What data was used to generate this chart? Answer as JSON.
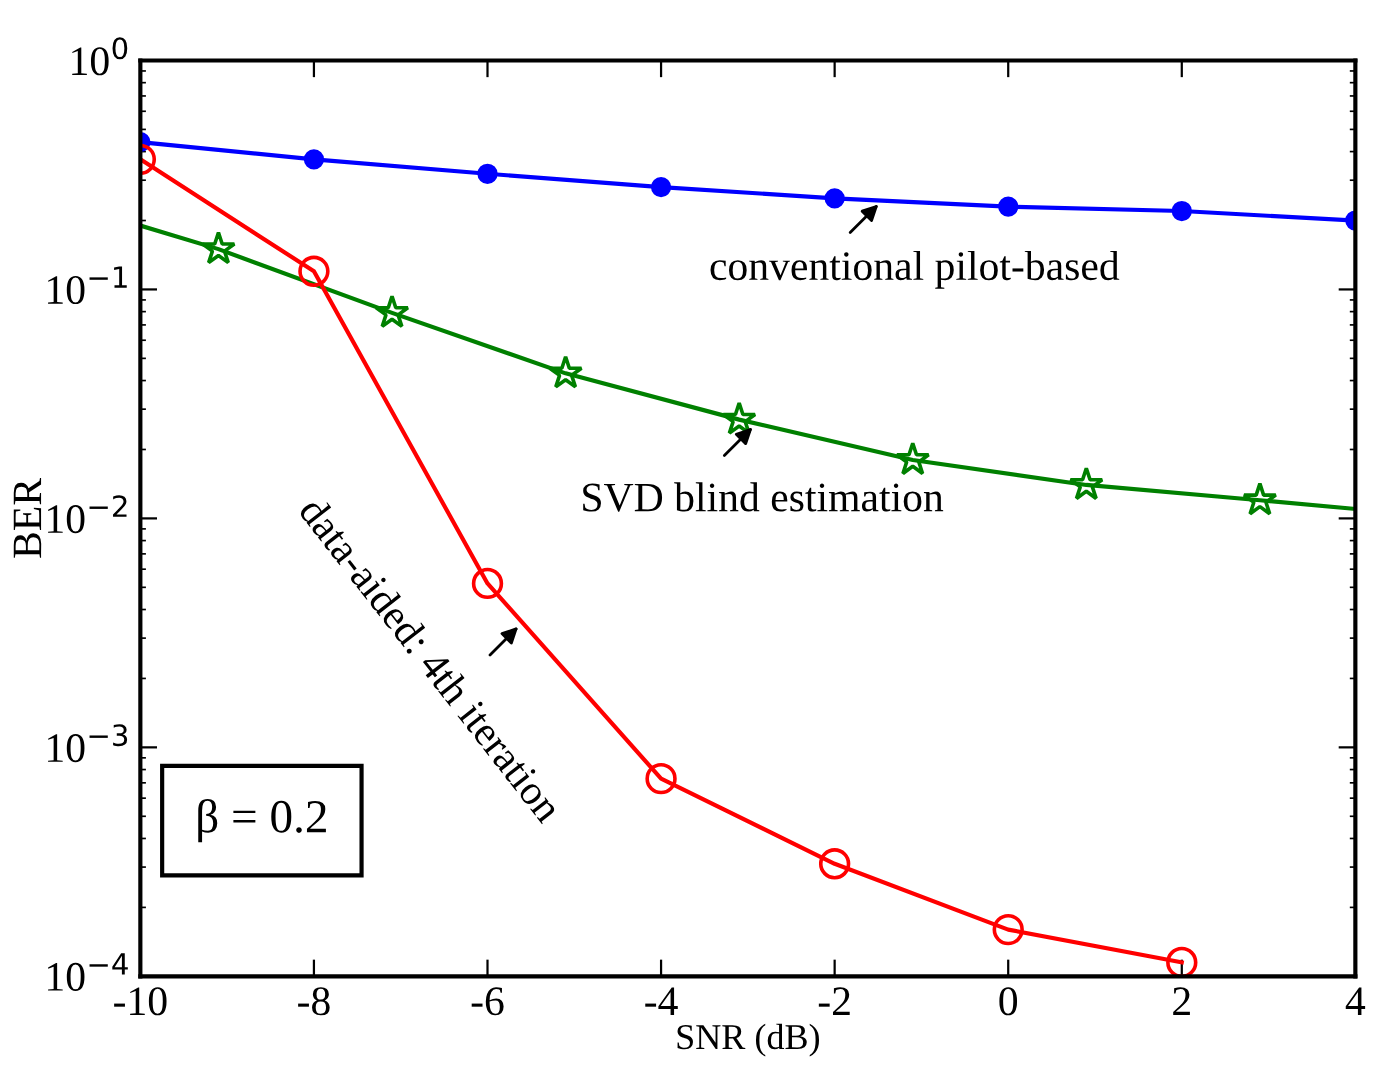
{
  "chart_data": {
    "type": "line",
    "xlabel": "SNR (dB)",
    "ylabel": "BER",
    "log": "y",
    "grid": false,
    "xlim": [
      -10,
      4
    ],
    "xticks": [
      -10,
      -8,
      -6,
      -4,
      -2,
      0,
      2,
      4
    ],
    "ylim": [
      0.0001,
      1
    ],
    "yticks": [
      {
        "value": 1,
        "label": "10$^{0}$"
      },
      {
        "value": 0.1,
        "label": "10$^{−1}$"
      },
      {
        "value": 0.01,
        "label": "10$^{−2}$"
      },
      {
        "value": 0.001,
        "label": "10$^{−3}$"
      },
      {
        "value": 0.0001,
        "label": "10$^{−4}$"
      }
    ],
    "series": [
      {
        "color": "#0000ff",
        "marker": "circle",
        "x": [
          -10,
          -8,
          -6,
          -4,
          -2,
          0,
          2,
          4
        ],
        "values": [
          0.44,
          0.37,
          0.32,
          0.28,
          0.25,
          0.23,
          0.22,
          0.2
        ]
      },
      {
        "color": "#008000",
        "marker": "none",
        "x": [
          -10,
          -9.1,
          -7.1,
          -5.1,
          -3.1,
          -1.1,
          0.9,
          2.9,
          4
        ],
        "values": [
          0.19,
          0.15,
          0.079,
          0.043,
          0.027,
          0.018,
          0.014,
          0.012,
          0.011
        ]
      },
      {
        "type": "scatter",
        "color": "#008000",
        "marker": "star",
        "x": [
          -9.1,
          -7.1,
          -5.1,
          -3.1,
          -1.1,
          0.9,
          2.9
        ],
        "values": [
          0.15,
          0.079,
          0.043,
          0.027,
          0.018,
          0.014,
          0.012
        ]
      },
      {
        "color": "#ff0000",
        "marker": "circle_open",
        "x": [
          -10,
          -8,
          -6,
          -4,
          -2,
          0,
          2
        ],
        "values": [
          0.37,
          0.12,
          0.0052,
          0.00073,
          0.00031,
          0.00016,
          0.000115
        ]
      }
    ],
    "annotations": [
      {
        "text": "conventional pilot-based",
        "x": -1.45,
        "y": 0.245
      },
      {
        "text": "SVD blind estimation",
        "x": -2.9,
        "y": 0.026
      },
      {
        "text": "data-aided: 4th iteration",
        "x": -5.6,
        "y": 0.0035
      },
      "β = 0.2"
    ]
  }
}
